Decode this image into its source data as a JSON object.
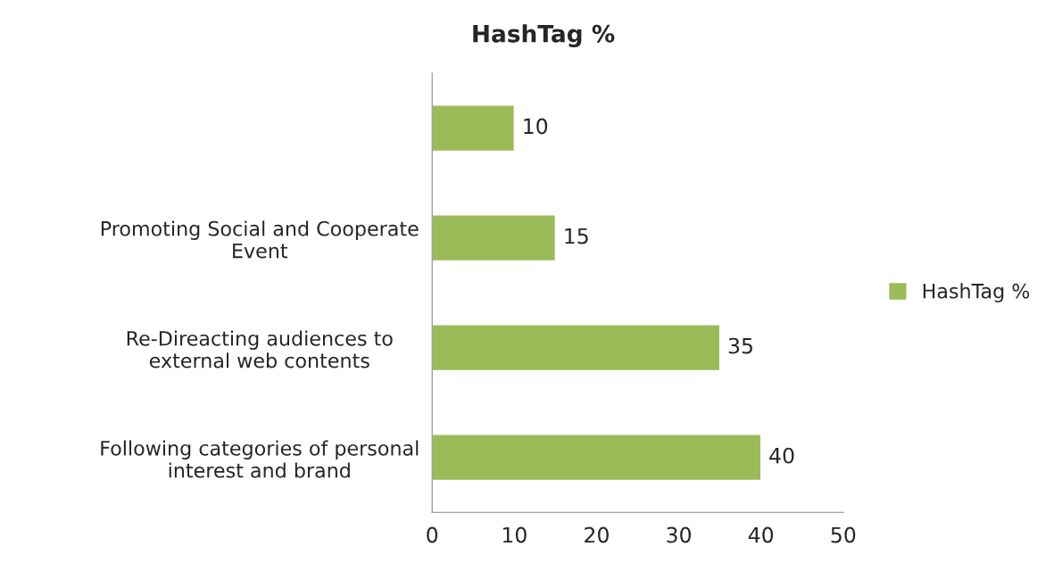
{
  "chart_data": {
    "type": "bar",
    "orientation": "horizontal",
    "title": "HashTag %",
    "categories": [
      null,
      "Promoting Social and Cooperate\nEvent",
      "Re-Direacting audiences to\nexternal web contents",
      "Following categories of personal\ninterest and brand"
    ],
    "series": [
      {
        "name": "HashTag %",
        "color": "#9bbb59",
        "values": [
          10,
          15,
          35,
          40
        ]
      }
    ],
    "xlim": [
      0,
      50
    ],
    "xticks": [
      0,
      10,
      20,
      30,
      40,
      50
    ],
    "data_labels": true,
    "legend": "right",
    "grid": false
  }
}
